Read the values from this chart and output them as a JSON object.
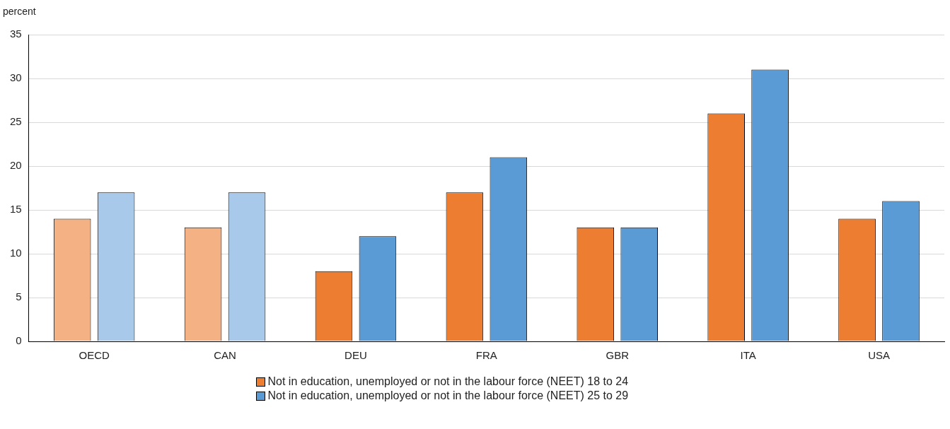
{
  "chart_data": {
    "type": "bar",
    "ylabel": "percent",
    "categories": [
      "OECD",
      "CAN",
      "DEU",
      "FRA",
      "GBR",
      "ITA",
      "USA"
    ],
    "series": [
      {
        "name": "Not in education, unemployed or not in the labour force (NEET) 18 to 24",
        "color": "#ed7d31",
        "colors": [
          "#f4b183",
          "#f4b183",
          "#ed7d31",
          "#ed7d31",
          "#ed7d31",
          "#ed7d31",
          "#ed7d31"
        ],
        "values": [
          14,
          13,
          8,
          17,
          13,
          26,
          14
        ]
      },
      {
        "name": "Not in education, unemployed or not in the labour force (NEET) 25 to 29",
        "color": "#5b9bd5",
        "colors": [
          "#a9c9ea",
          "#a9c9ea",
          "#5b9bd5",
          "#5b9bd5",
          "#5b9bd5",
          "#5b9bd5",
          "#5b9bd5"
        ],
        "values": [
          17,
          17,
          12,
          21,
          13,
          31,
          16
        ]
      }
    ],
    "ylim": [
      0,
      35
    ],
    "yticks": [
      0,
      5,
      10,
      15,
      20,
      25,
      30,
      35
    ],
    "grid": "y",
    "legend": "bottom"
  }
}
